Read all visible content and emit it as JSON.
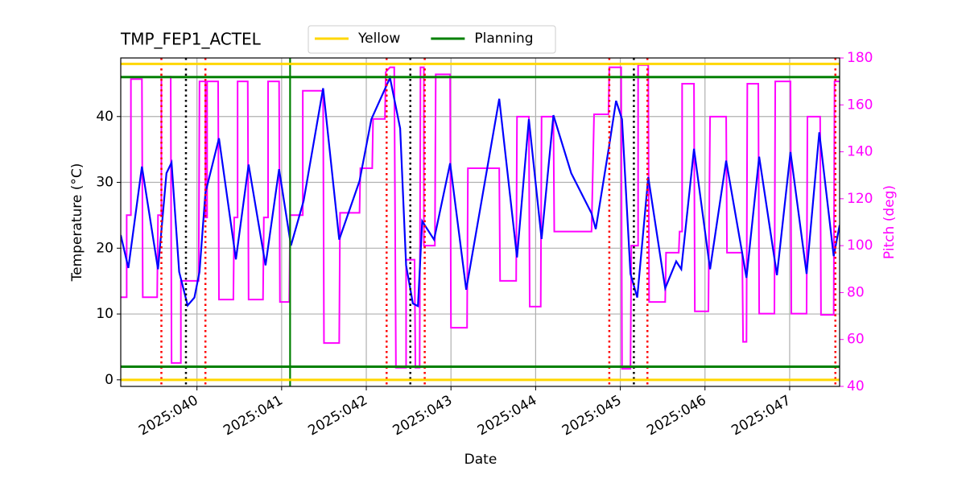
{
  "chart_data": {
    "type": "line",
    "title": "TMP_FEP1_ACTEL",
    "x_label": "Date",
    "y_label": "Temperature (°C)",
    "y2_label": "Pitch (deg)",
    "xlim": [
      39.1,
      47.59
    ],
    "ylim": [
      -1,
      48.9
    ],
    "y2lim": [
      40,
      180
    ],
    "xticks": [
      {
        "value": 40,
        "label": "2025:040"
      },
      {
        "value": 41,
        "label": "2025:041"
      },
      {
        "value": 42,
        "label": "2025:042"
      },
      {
        "value": 43,
        "label": "2025:043"
      },
      {
        "value": 44,
        "label": "2025:044"
      },
      {
        "value": 45,
        "label": "2025:045"
      },
      {
        "value": 46,
        "label": "2025:046"
      },
      {
        "value": 47,
        "label": "2025:047"
      }
    ],
    "yticks": [
      0,
      10,
      20,
      30,
      40
    ],
    "y2ticks": [
      40,
      60,
      80,
      100,
      120,
      140,
      160,
      180
    ],
    "grid": true,
    "legend_position": "top",
    "hlines": [
      {
        "name": "Yellow",
        "color": "#ffd700",
        "values": [
          48,
          0
        ]
      },
      {
        "name": "Planning",
        "color": "#008000",
        "values": [
          46,
          2
        ]
      }
    ],
    "vlines": [
      {
        "color": "#008000",
        "style": "solid",
        "x": [
          41.1
        ]
      },
      {
        "color": "#ff0000",
        "style": "dotted",
        "x": [
          39.58,
          40.1,
          42.24,
          42.69,
          44.87,
          45.32,
          47.54
        ]
      },
      {
        "color": "#000000",
        "style": "dotted",
        "x": [
          39.87,
          42.52,
          45.16
        ]
      }
    ],
    "series": [
      {
        "color": "#ff00ff",
        "axis": "y2",
        "x": [
          39.1,
          39.17,
          39.17,
          39.22,
          39.22,
          39.35,
          39.36,
          39.53,
          39.54,
          39.58,
          39.58,
          39.69,
          39.7,
          39.81,
          39.81,
          40.02,
          40.03,
          40.1,
          40.1,
          40.12,
          40.12,
          40.25,
          40.26,
          40.43,
          40.44,
          40.48,
          40.48,
          40.6,
          40.61,
          40.78,
          40.79,
          40.84,
          40.84,
          40.97,
          40.98,
          41.09,
          41.1,
          41.25,
          41.25,
          41.49,
          41.5,
          41.68,
          41.69,
          41.92,
          41.93,
          42.07,
          42.08,
          42.22,
          42.23,
          42.28,
          42.33,
          42.35,
          42.47,
          42.47,
          42.57,
          42.58,
          42.63,
          42.64,
          42.68,
          42.68,
          42.81,
          42.82,
          42.99,
          43.0,
          43.19,
          43.2,
          43.57,
          43.58,
          43.77,
          43.78,
          43.92,
          43.93,
          44.06,
          44.07,
          44.21,
          44.22,
          44.66,
          44.69,
          44.86,
          44.87,
          45.01,
          45.02,
          45.12,
          45.13,
          45.21,
          45.21,
          45.33,
          45.34,
          45.53,
          45.54,
          45.69,
          45.7,
          45.73,
          45.73,
          45.87,
          45.88,
          46.04,
          46.06,
          46.25,
          46.26,
          46.44,
          46.45,
          46.49,
          46.5,
          46.63,
          46.64,
          46.82,
          46.83,
          47.01,
          47.02,
          47.2,
          47.21,
          47.36,
          47.37,
          47.52,
          47.53,
          47.59
        ],
        "values": [
          78,
          78,
          113,
          113,
          171,
          171,
          78,
          78,
          113,
          113,
          172,
          172,
          50,
          50,
          85,
          85,
          170,
          170,
          112,
          112,
          170,
          170,
          77,
          77,
          112,
          112,
          170,
          170,
          77,
          77,
          112,
          112,
          170,
          170,
          76,
          76,
          113,
          113,
          166,
          166,
          58.5,
          58.5,
          114,
          114,
          133,
          133,
          154,
          154,
          174,
          176,
          176,
          48,
          48,
          94,
          94,
          48,
          48,
          176,
          176,
          100,
          100,
          173,
          173,
          65,
          65,
          133,
          133,
          85,
          85,
          155,
          155,
          74,
          74,
          155,
          155,
          106,
          106,
          156,
          156,
          176,
          176,
          47.5,
          47.5,
          100,
          100,
          177,
          177,
          76,
          76,
          97,
          97,
          106,
          106,
          169,
          169,
          72,
          72,
          155,
          155,
          97,
          97,
          59,
          59,
          169,
          169,
          71,
          71,
          170,
          170,
          71,
          71,
          155,
          155,
          70.5,
          70.5,
          170,
          170
        ]
      },
      {
        "color": "#0000ff",
        "axis": "y",
        "x": [
          39.1,
          39.19,
          39.35,
          39.54,
          39.64,
          39.7,
          39.79,
          39.89,
          39.97,
          40.03,
          40.1,
          40.26,
          40.46,
          40.61,
          40.81,
          40.97,
          41.11,
          41.26,
          41.49,
          41.68,
          41.92,
          42.06,
          42.28,
          42.4,
          42.47,
          42.55,
          42.61,
          42.66,
          42.8,
          42.99,
          43.18,
          43.57,
          43.78,
          43.92,
          44.07,
          44.21,
          44.42,
          44.66,
          44.71,
          44.87,
          44.95,
          45.02,
          45.12,
          45.2,
          45.33,
          45.53,
          45.66,
          45.72,
          45.87,
          46.06,
          46.25,
          46.49,
          46.64,
          46.85,
          47.01,
          47.2,
          47.35,
          47.52,
          47.59
        ],
        "values": [
          22,
          17,
          32.4,
          16.8,
          31.4,
          33,
          16.4,
          11.3,
          12.5,
          16.4,
          28.4,
          36.7,
          18.3,
          32.7,
          17.4,
          32,
          20.4,
          27.2,
          44.3,
          21.3,
          30.2,
          39.6,
          45.9,
          38.2,
          17.4,
          11.6,
          11.2,
          24.1,
          21.3,
          32.9,
          13.7,
          42.7,
          18.6,
          39.6,
          21.4,
          40.2,
          31.4,
          25.3,
          22.9,
          35.7,
          42.4,
          39.6,
          16.1,
          12.5,
          30.8,
          13.9,
          18,
          16.8,
          35.1,
          16.8,
          33.3,
          15.5,
          33.9,
          15.9,
          34.6,
          16.1,
          37.6,
          18.8,
          23.5
        ]
      }
    ]
  }
}
